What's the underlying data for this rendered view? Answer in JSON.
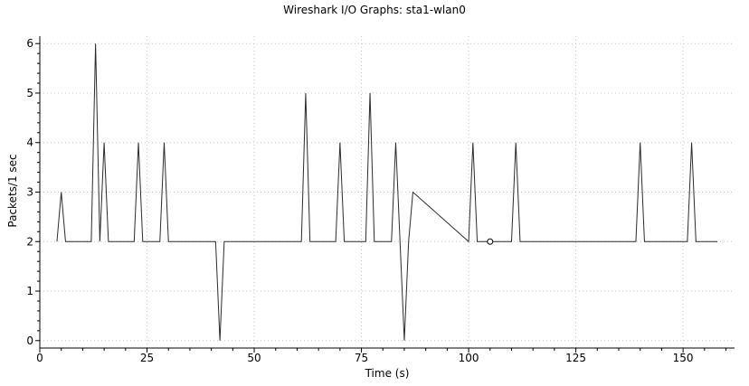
{
  "chart_data": {
    "type": "line",
    "title": "Wireshark I/O Graphs: sta1-wlan0",
    "xlabel": "Time (s)",
    "ylabel": "Packets/1 sec",
    "xlim": [
      0,
      162
    ],
    "ylim": [
      -0.15,
      6.15
    ],
    "x_ticks": [
      0,
      25,
      50,
      75,
      100,
      125,
      150
    ],
    "x_tick_labels": [
      "0",
      "25",
      "50",
      "75",
      "100",
      "125",
      "150"
    ],
    "y_ticks": [
      0,
      1,
      2,
      3,
      4,
      5,
      6
    ],
    "y_tick_labels": [
      "0",
      "1",
      "2",
      "3",
      "4",
      "5",
      "6"
    ],
    "grid": true,
    "series": [
      {
        "color": "#2b2b2b",
        "x": [
          4,
          5,
          6,
          12,
          13,
          14,
          15,
          16,
          22,
          23,
          24,
          28,
          29,
          30,
          41,
          42,
          43,
          61,
          62,
          63,
          69,
          70,
          71,
          76,
          77,
          78,
          82,
          83,
          84,
          85,
          86,
          87,
          100,
          101,
          102,
          104,
          105,
          110,
          111,
          112,
          139,
          140,
          141,
          151,
          152,
          153,
          158
        ],
        "y": [
          2,
          3,
          2,
          2,
          6,
          2,
          4,
          2,
          2,
          4,
          2,
          2,
          4,
          2,
          2,
          0,
          2,
          2,
          5,
          2,
          2,
          4,
          2,
          2,
          5,
          2,
          2,
          4,
          2,
          0,
          2,
          3,
          2,
          4,
          2,
          2,
          2,
          2,
          4,
          2,
          2,
          4,
          2,
          2,
          4,
          2,
          2
        ]
      }
    ],
    "markers": [
      {
        "x": 105,
        "y": 2
      }
    ]
  }
}
